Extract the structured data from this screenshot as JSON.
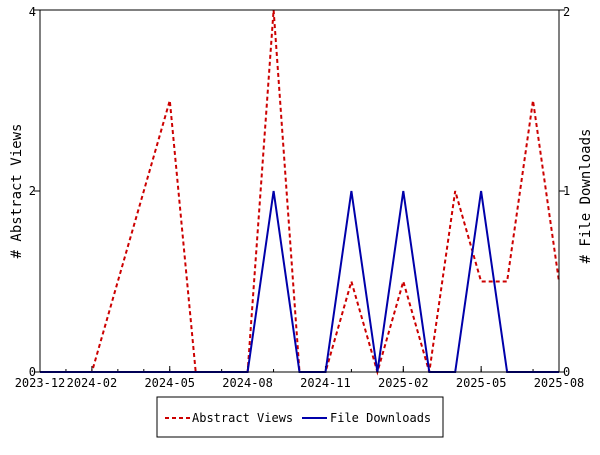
{
  "chart_data": {
    "type": "line",
    "x": [
      "2023-12",
      "2024-01",
      "2024-02",
      "2024-03",
      "2024-04",
      "2024-05",
      "2024-06",
      "2024-07",
      "2024-08",
      "2024-09",
      "2024-10",
      "2024-11",
      "2024-12",
      "2025-01",
      "2025-02",
      "2025-03",
      "2025-04",
      "2025-05",
      "2025-06",
      "2025-07",
      "2025-08"
    ],
    "x_tick_labels": [
      "2023-12",
      "2024-02",
      "2024-05",
      "2024-08",
      "2024-11",
      "2025-02",
      "2025-05",
      "2025-08"
    ],
    "x_tick_dates": [
      "2023-12",
      "2024-02",
      "2024-05",
      "2024-08",
      "2024-11",
      "2025-02",
      "2025-05",
      "2025-08"
    ],
    "xlim": [
      "2023-12",
      "2025-08"
    ],
    "ylabel_left": "# Abstract Views",
    "ylabel_right": "# File Downloads",
    "ylim_left": [
      0,
      4
    ],
    "ylim_right": [
      0,
      2
    ],
    "y_ticks_left": [
      "0",
      "2",
      "4"
    ],
    "y_ticks_right": [
      "0",
      "1",
      "2"
    ],
    "series": [
      {
        "name": "Abstract Views",
        "axis": "left",
        "color": "#cc0000",
        "style": "dashed",
        "values": [
          0,
          0,
          0,
          1,
          2,
          3,
          0,
          0,
          0,
          4,
          0,
          0,
          1,
          0,
          1,
          0,
          2,
          1,
          1,
          3,
          1
        ]
      },
      {
        "name": "File Downloads",
        "axis": "right",
        "color": "#0000aa",
        "style": "solid",
        "values": [
          0,
          0,
          0,
          0,
          0,
          0,
          0,
          0,
          0,
          1,
          0,
          0,
          1,
          0,
          1,
          0,
          0,
          1,
          0,
          0,
          0
        ]
      }
    ],
    "legend": "bottom-center"
  }
}
